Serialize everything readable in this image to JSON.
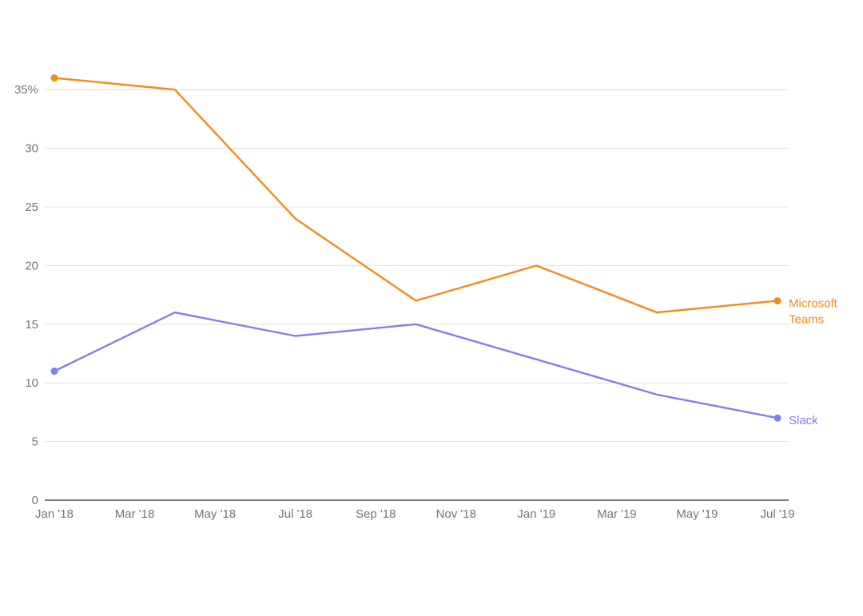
{
  "chart_data": {
    "type": "line",
    "title": "",
    "xlabel": "",
    "ylabel": "",
    "x_tick_labels": [
      "Jan '18",
      "Mar '18",
      "May '18",
      "Jul '18",
      "Sep '18",
      "Nov '18",
      "Jan '19",
      "Mar '19",
      "May '19",
      "Jul '19"
    ],
    "x_range": [
      "2018-01",
      "2019-07"
    ],
    "y_ticks": [
      0,
      5,
      10,
      15,
      20,
      25,
      30,
      35
    ],
    "y_tick_labels": [
      "0",
      "5",
      "10",
      "15",
      "20",
      "25",
      "30",
      "35%"
    ],
    "ylim": [
      0,
      35
    ],
    "y_unit": "%",
    "grid": true,
    "legend": "inline labels at line ends (right)",
    "series": [
      {
        "name": "Microsoft Teams",
        "label_lines": [
          "Microsoft",
          "Teams"
        ],
        "color": "#F28C1B",
        "points": [
          {
            "x": "2018-01",
            "y": 36
          },
          {
            "x": "2018-04",
            "y": 35
          },
          {
            "x": "2018-07",
            "y": 24
          },
          {
            "x": "2018-10",
            "y": 17
          },
          {
            "x": "2019-01",
            "y": 20
          },
          {
            "x": "2019-04",
            "y": 16
          },
          {
            "x": "2019-07",
            "y": 17
          }
        ]
      },
      {
        "name": "Slack",
        "label_lines": [
          "Slack"
        ],
        "color": "#8080F0",
        "points": [
          {
            "x": "2018-01",
            "y": 11
          },
          {
            "x": "2018-04",
            "y": 16
          },
          {
            "x": "2018-07",
            "y": 14
          },
          {
            "x": "2018-10",
            "y": 15
          },
          {
            "x": "2019-01",
            "y": 12
          },
          {
            "x": "2019-04",
            "y": 9
          },
          {
            "x": "2019-07",
            "y": 7
          }
        ]
      }
    ]
  }
}
